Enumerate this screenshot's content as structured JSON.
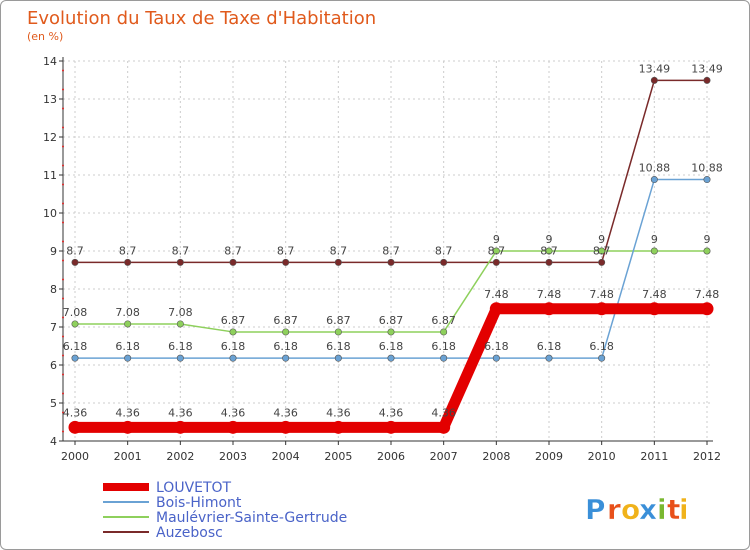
{
  "chart_data": {
    "type": "line",
    "title": "Evolution du Taux de Taxe d'Habitation",
    "subtitle": "(en %)",
    "xlabel": "",
    "ylabel": "",
    "categories": [
      "2000",
      "2001",
      "2002",
      "2003",
      "2004",
      "2005",
      "2006",
      "2007",
      "2008",
      "2009",
      "2010",
      "2011",
      "2012"
    ],
    "ylim": [
      4,
      14
    ],
    "yticks": [
      4,
      5,
      6,
      7,
      8,
      9,
      10,
      11,
      12,
      13,
      14
    ],
    "grid": true,
    "legend_position": "bottom-left",
    "series": [
      {
        "name": "LOUVETOT",
        "color": "#e30000",
        "values": [
          4.36,
          4.36,
          4.36,
          4.36,
          4.36,
          4.36,
          4.36,
          4.36,
          7.48,
          7.48,
          7.48,
          7.48,
          7.48
        ],
        "labels": [
          "4.36",
          "4.36",
          "4.36",
          "4.36",
          "4.36",
          "4.36",
          "4.36",
          "4.36",
          "7.48",
          "7.48",
          "7.48",
          "7.48",
          "7.48"
        ]
      },
      {
        "name": "Bois-Himont",
        "color": "#6aa2d4",
        "values": [
          6.18,
          6.18,
          6.18,
          6.18,
          6.18,
          6.18,
          6.18,
          6.18,
          6.18,
          6.18,
          6.18,
          10.88,
          10.88
        ],
        "labels": [
          "6.18",
          "6.18",
          "6.18",
          "6.18",
          "6.18",
          "6.18",
          "6.18",
          "6.18",
          "6.18",
          "6.18",
          "6.18",
          "10.88",
          "10.88"
        ]
      },
      {
        "name": "Maulévrier-Sainte-Gertrude",
        "color": "#8ed05c",
        "values": [
          7.08,
          7.08,
          7.08,
          6.87,
          6.87,
          6.87,
          6.87,
          6.87,
          9,
          9,
          9,
          9,
          9
        ],
        "labels": [
          "7.08",
          "7.08",
          "7.08",
          "6.87",
          "6.87",
          "6.87",
          "6.87",
          "6.87",
          "9",
          "9",
          "9",
          "9",
          "9"
        ]
      },
      {
        "name": "Auzebosc",
        "color": "#7a2a2a",
        "values": [
          8.7,
          8.7,
          8.7,
          8.7,
          8.7,
          8.7,
          8.7,
          8.7,
          8.7,
          8.7,
          8.7,
          13.49,
          13.49
        ],
        "labels": [
          "8.7",
          "8.7",
          "8.7",
          "8.7",
          "8.7",
          "8.7",
          "8.7",
          "8.7",
          "8.7",
          "8.7",
          "8.7",
          "13.49",
          "13.49"
        ]
      }
    ]
  },
  "brand": {
    "logo_letters": [
      "P",
      "r",
      "o",
      "x",
      "i",
      "t",
      "i"
    ],
    "logo_colors": [
      "#3a8fd8",
      "#e8501a",
      "#f0b21a",
      "#3a8fd8",
      "#7ab830",
      "#e8501a",
      "#f0b21a"
    ]
  }
}
